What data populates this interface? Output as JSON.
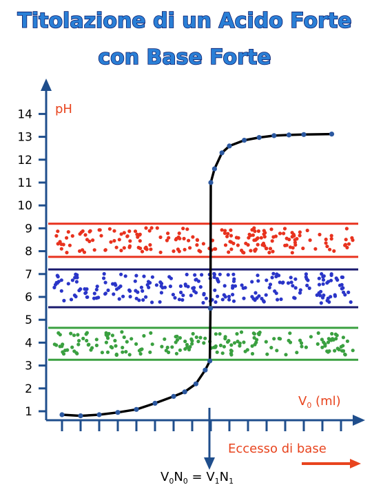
{
  "title": {
    "line1": "Titolazione di un Acido Forte",
    "line2": "con Base Forte"
  },
  "chart_data": {
    "type": "line",
    "ylabel": "pH",
    "xlabel_prefix": "V",
    "xlabel_sub": "0",
    "xlabel_suffix": " (ml)",
    "excess_label": "Eccesso di base",
    "equivalence_label": {
      "a": "V",
      "a_sub": "0",
      "b": "N",
      "b_sub": "0",
      "eq": " = ",
      "c": "V",
      "c_sub": "1",
      "d": "N",
      "d_sub": "1"
    },
    "ylim": [
      0.5,
      14.5
    ],
    "y_ticks": [
      "1",
      "2",
      "3",
      "4",
      "5",
      "6",
      "7",
      "8",
      "9",
      "10",
      "11",
      "12",
      "13",
      "14"
    ],
    "x_tick_count": 16,
    "equivalence_x": 8.0,
    "xlim": [
      0,
      16
    ],
    "series": [
      {
        "points": [
          [
            0.0,
            0.85
          ],
          [
            1.0,
            0.8
          ],
          [
            2.0,
            0.85
          ],
          [
            3.0,
            0.95
          ],
          [
            4.0,
            1.08
          ],
          [
            5.0,
            1.35
          ],
          [
            6.0,
            1.65
          ],
          [
            6.6,
            1.85
          ],
          [
            7.2,
            2.2
          ],
          [
            7.7,
            2.8
          ],
          [
            7.95,
            3.2
          ],
          [
            7.98,
            5.5
          ],
          [
            8.0,
            11.0
          ],
          [
            8.2,
            11.6
          ],
          [
            8.6,
            12.3
          ],
          [
            9.0,
            12.6
          ],
          [
            9.8,
            12.85
          ],
          [
            10.6,
            12.97
          ],
          [
            11.4,
            13.05
          ],
          [
            12.2,
            13.08
          ],
          [
            13.0,
            13.1
          ],
          [
            14.5,
            13.12
          ]
        ]
      }
    ],
    "indicator_bands": [
      {
        "name": "red-band",
        "range": [
          7.75,
          9.2
        ],
        "color": "#e8321e",
        "dot": "#e8321e"
      },
      {
        "name": "blue-band",
        "range": [
          5.55,
          7.2
        ],
        "color": "#1a1a6e",
        "dot": "#2a35c8"
      },
      {
        "name": "green-band",
        "range": [
          3.25,
          4.65
        ],
        "color": "#3aa040",
        "dot": "#3aa040"
      }
    ],
    "colors": {
      "axis": "#1f4e8c",
      "curve": "#000000",
      "marker": "#2b58a0",
      "label": "#e8441e",
      "arrow": "#e8441e"
    }
  }
}
